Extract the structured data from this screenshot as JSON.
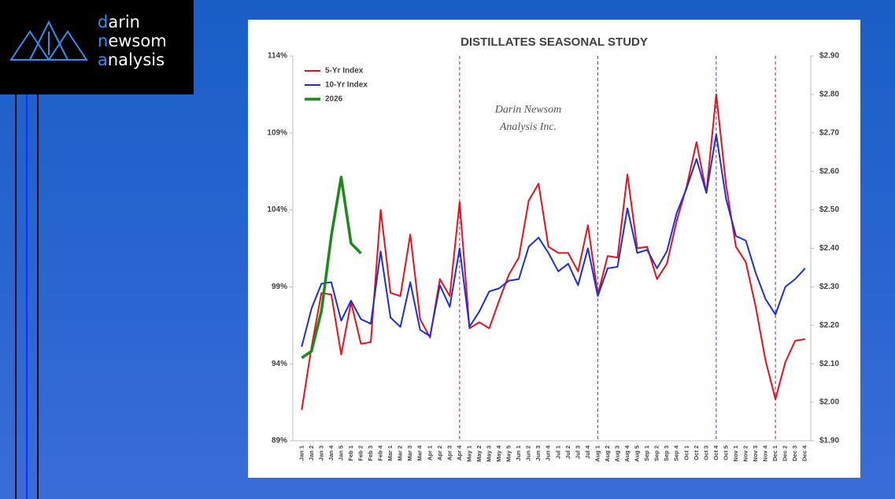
{
  "logo": {
    "lines": [
      "darin",
      "newsom",
      "analysis"
    ]
  },
  "chart_data": {
    "type": "line",
    "title": "DISTILLATES SEASONAL STUDY",
    "annotations": [
      "Darin Newsom",
      "Analysis Inc."
    ],
    "categories": [
      "Jan 1",
      "Jan 2",
      "Jan 3",
      "Jan 4",
      "Jan 5",
      "Feb 1",
      "Feb 2",
      "Feb 3",
      "Feb 4",
      "Mar 1",
      "Mar 2",
      "Mar 3",
      "Mar 4",
      "Apr 1",
      "Apr 2",
      "Apr 3",
      "Apr 4",
      "May 1",
      "May 2",
      "May 3",
      "May 4",
      "May 5",
      "Jun 1",
      "Jun 2",
      "Jun 3",
      "Jun 4",
      "Jul 1",
      "Jul 2",
      "Jul 3",
      "Jul 4",
      "Aug 1",
      "Aug 2",
      "Aug 3",
      "Aug 4",
      "Aug 5",
      "Sep 1",
      "Sep 2",
      "Sep 3",
      "Sep 4",
      "Oct 1",
      "Oct 2",
      "Oct 3",
      "Oct 4",
      "Oct 5",
      "Nov 1",
      "Nov 2",
      "Nov 3",
      "Nov 4",
      "Dec 1",
      "Dec 2",
      "Dec 3",
      "Dec 4"
    ],
    "series": [
      {
        "name": "5-Yr Index",
        "color": "#e8101a",
        "values": [
          91.0,
          95.1,
          98.6,
          98.5,
          94.6,
          98.0,
          95.3,
          95.4,
          104.0,
          98.6,
          98.4,
          102.4,
          96.9,
          95.7,
          99.5,
          98.4,
          104.5,
          96.3,
          96.7,
          96.3,
          98.1,
          99.8,
          100.9,
          104.6,
          105.7,
          101.6,
          101.2,
          101.2,
          100.0,
          103.0,
          98.5,
          101.0,
          100.9,
          106.3,
          101.5,
          101.6,
          99.5,
          100.5,
          103.3,
          105.5,
          108.4,
          105.1,
          111.5,
          105.6,
          101.6,
          100.6,
          97.7,
          94.2,
          91.7,
          94.1,
          95.5,
          95.6
        ]
      },
      {
        "name": "10-Yr Index",
        "color": "#1a2fe0",
        "values": [
          95.1,
          97.6,
          99.2,
          99.3,
          96.8,
          98.1,
          96.9,
          96.6,
          101.3,
          97.0,
          96.4,
          99.3,
          96.2,
          95.8,
          99.1,
          97.7,
          101.5,
          96.4,
          97.4,
          98.7,
          98.9,
          99.4,
          99.5,
          101.6,
          102.2,
          101.2,
          100.0,
          100.5,
          99.1,
          101.5,
          98.4,
          100.2,
          100.3,
          104.1,
          101.2,
          101.4,
          100.2,
          101.3,
          103.8,
          105.4,
          107.3,
          105.1,
          108.9,
          104.7,
          102.3,
          102.0,
          99.9,
          98.2,
          97.2,
          99.0,
          99.5,
          100.2
        ]
      },
      {
        "name": "2026",
        "color": "#1a8a1a",
        "axis": "y2",
        "values": [
          2.115,
          2.133,
          2.237,
          2.432,
          2.585,
          2.413,
          2.387,
          null,
          null,
          null,
          null,
          null,
          null,
          null,
          null,
          null,
          null,
          null,
          null,
          null,
          null,
          null,
          null,
          null,
          null,
          null,
          null,
          null,
          null,
          null,
          null,
          null,
          null,
          null,
          null,
          null,
          null,
          null,
          null,
          null,
          null,
          null,
          null,
          null,
          null,
          null,
          null,
          null,
          null,
          null,
          null,
          null
        ]
      }
    ],
    "ylim": [
      89,
      114
    ],
    "yticks": [
      {
        "value": 89,
        "label": "89%"
      },
      {
        "value": 94,
        "label": "94%"
      },
      {
        "value": 99,
        "label": "99%"
      },
      {
        "value": 104,
        "label": "104%"
      },
      {
        "value": 109,
        "label": "109%"
      },
      {
        "value": 114,
        "label": "114%"
      }
    ],
    "y2lim": [
      1.9,
      2.9
    ],
    "y2ticks": [
      {
        "value": 1.9,
        "label": "$1.90"
      },
      {
        "value": 2.0,
        "label": "$2.00"
      },
      {
        "value": 2.1,
        "label": "$2.10"
      },
      {
        "value": 2.2,
        "label": "$2.20"
      },
      {
        "value": 2.3,
        "label": "$2.30"
      },
      {
        "value": 2.4,
        "label": "$2.40"
      },
      {
        "value": 2.5,
        "label": "$2.50"
      },
      {
        "value": 2.6,
        "label": "$2.60"
      },
      {
        "value": 2.7,
        "label": "$2.70"
      },
      {
        "value": 2.8,
        "label": "$2.80"
      },
      {
        "value": 2.9,
        "label": "$2.90"
      }
    ],
    "grid": false,
    "legend": "upper left",
    "vlines": [
      "Apr 4",
      "Aug 1",
      "Oct 4",
      "Dec 1"
    ],
    "vline_color": "#7030a0"
  }
}
